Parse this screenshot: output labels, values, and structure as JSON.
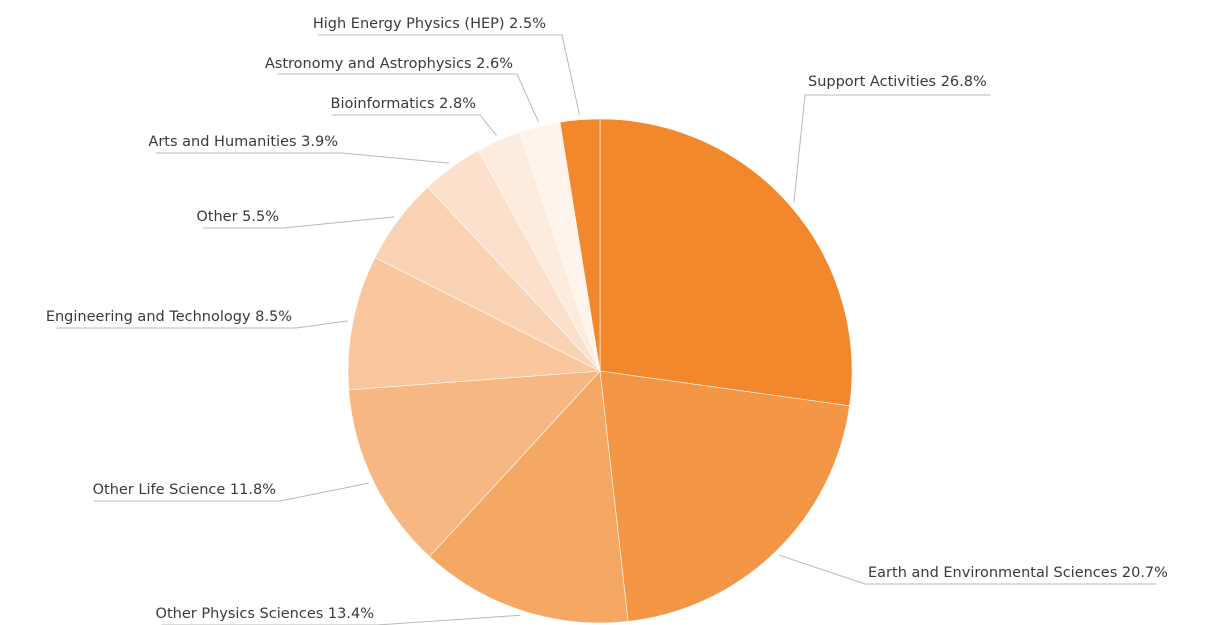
{
  "chart_data": {
    "type": "pie",
    "title": "",
    "slices": [
      {
        "label": "Support Activities",
        "value": 26.8,
        "color": "#F2872C"
      },
      {
        "label": "Earth and Environmental Sciences",
        "value": 20.7,
        "color": "#F39747"
      },
      {
        "label": "Other Physics Sciences",
        "value": 13.4,
        "color": "#F5A764"
      },
      {
        "label": "Other Life Science",
        "value": 11.8,
        "color": "#F7B782"
      },
      {
        "label": "Engineering and Technology",
        "value": 8.5,
        "color": "#F9C69D"
      },
      {
        "label": "Other",
        "value": 5.5,
        "color": "#FAD3B5"
      },
      {
        "label": "Arts and Humanities",
        "value": 3.9,
        "color": "#FCE0CB"
      },
      {
        "label": "Bioinformatics",
        "value": 2.8,
        "color": "#FDEBDE"
      },
      {
        "label": "Astronomy and Astrophysics",
        "value": 2.6,
        "color": "#FEF4EC"
      },
      {
        "label": "High Energy Physics (HEP)",
        "value": 2.5,
        "color": "#F2872C"
      }
    ],
    "value_suffix": "%",
    "legend": "none",
    "start_angle": "12 o'clock",
    "direction": "clockwise"
  }
}
